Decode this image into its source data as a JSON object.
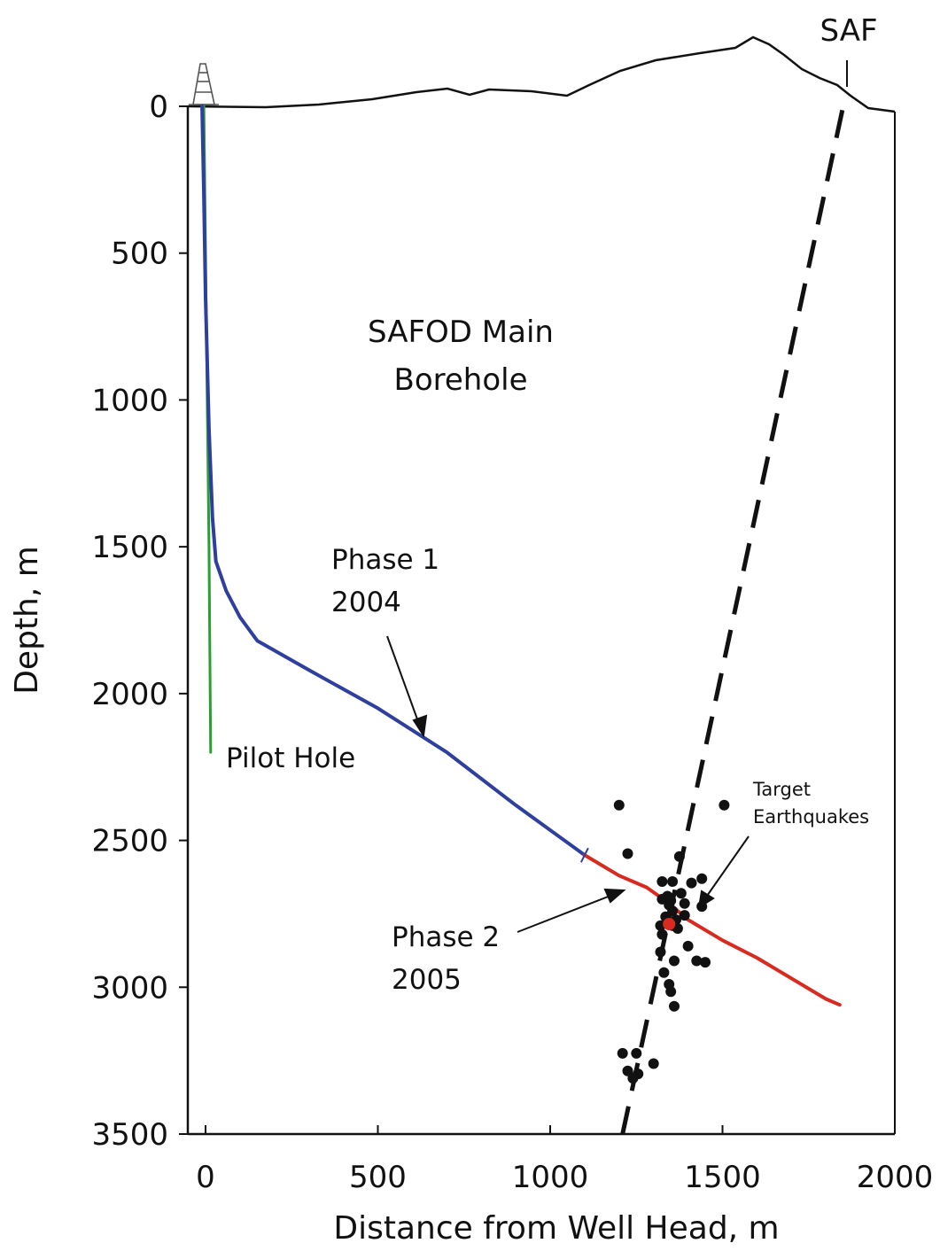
{
  "chart_data": {
    "type": "scatter",
    "xlabel": "Distance from Well Head, m",
    "ylabel": "Depth, m",
    "xlim": [
      0,
      2000
    ],
    "ylim": [
      3500,
      0
    ],
    "x_ticks": [
      0,
      500,
      1000,
      1500,
      2000
    ],
    "y_ticks": [
      0,
      500,
      1000,
      1500,
      2000,
      2500,
      3000,
      3500
    ],
    "grid": false,
    "colors": {
      "main": "#2e3f9e",
      "pilot": "#28a030",
      "phase2": "#d92a1f",
      "fault": "#111111",
      "quake": "#111111"
    },
    "series": [
      {
        "name": "Pilot Hole",
        "values": [
          [
            -5,
            0
          ],
          [
            0,
            500
          ],
          [
            5,
            1000
          ],
          [
            10,
            1500
          ],
          [
            12,
            1800
          ],
          [
            15,
            2200
          ]
        ]
      },
      {
        "name": "Phase 1",
        "values": [
          [
            -10,
            0
          ],
          [
            -5,
            300
          ],
          [
            0,
            650
          ],
          [
            10,
            1100
          ],
          [
            20,
            1400
          ],
          [
            30,
            1550
          ],
          [
            60,
            1650
          ],
          [
            100,
            1740
          ],
          [
            150,
            1820
          ],
          [
            300,
            1920
          ],
          [
            500,
            2050
          ],
          [
            700,
            2200
          ],
          [
            900,
            2380
          ],
          [
            1100,
            2550
          ]
        ]
      },
      {
        "name": "Phase 2",
        "values": [
          [
            1100,
            2550
          ],
          [
            1200,
            2620
          ],
          [
            1280,
            2660
          ],
          [
            1340,
            2710
          ],
          [
            1400,
            2770
          ],
          [
            1500,
            2840
          ],
          [
            1600,
            2900
          ],
          [
            1700,
            2970
          ],
          [
            1800,
            3040
          ],
          [
            1840,
            3060
          ]
        ]
      },
      {
        "name": "SAF",
        "values": [
          [
            1210,
            3500
          ],
          [
            1850,
            0
          ]
        ]
      },
      {
        "name": "Target Earthquakes",
        "values": [
          [
            1200,
            2380
          ],
          [
            1505,
            2380
          ],
          [
            1225,
            2545
          ],
          [
            1375,
            2555
          ],
          [
            1325,
            2640
          ],
          [
            1355,
            2640
          ],
          [
            1440,
            2630
          ],
          [
            1410,
            2645
          ],
          [
            1380,
            2680
          ],
          [
            1340,
            2690
          ],
          [
            1325,
            2700
          ],
          [
            1350,
            2705
          ],
          [
            1390,
            2715
          ],
          [
            1345,
            2720
          ],
          [
            1440,
            2725
          ],
          [
            1355,
            2740
          ],
          [
            1335,
            2760
          ],
          [
            1390,
            2755
          ],
          [
            1365,
            2770
          ],
          [
            1320,
            2790
          ],
          [
            1355,
            2790
          ],
          [
            1370,
            2800
          ],
          [
            1325,
            2820
          ],
          [
            1400,
            2860
          ],
          [
            1320,
            2880
          ],
          [
            1360,
            2910
          ],
          [
            1425,
            2910
          ],
          [
            1450,
            2915
          ],
          [
            1330,
            2950
          ],
          [
            1345,
            2990
          ],
          [
            1350,
            3015
          ],
          [
            1360,
            3065
          ],
          [
            1210,
            3225
          ],
          [
            1250,
            3225
          ],
          [
            1300,
            3260
          ],
          [
            1225,
            3285
          ],
          [
            1255,
            3295
          ],
          [
            1240,
            3310
          ]
        ]
      }
    ],
    "annotations": {
      "title_line1": "SAFOD Main",
      "title_line2": "Borehole",
      "phase1_line1": "Phase 1",
      "phase1_line2": "2004",
      "phase2_line1": "Phase 2",
      "phase2_line2": "2005",
      "pilot": "Pilot Hole",
      "quakes_line1": "Target",
      "quakes_line2": "Earthquakes",
      "fault": "SAF"
    }
  }
}
